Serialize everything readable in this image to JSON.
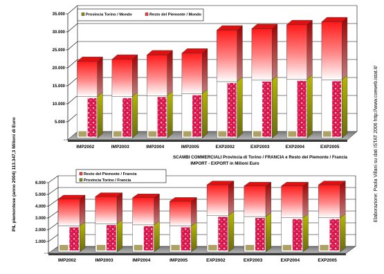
{
  "side_label_left": "PIL piemontese (anno 2004) 113.347,3 Milioni di  Euro",
  "side_label_right": "Elaborazione:  Paola Villani  su dati ISTAT 2006 http://www.coeweb.istat.it/",
  "middle_title_1": "SCAMBI COMMERCIALI Provincia di Torino / FRANCIA e Resto del Piemonte / Francia",
  "middle_title_2": "IMPORT - EXPORT  in Milioni Euro",
  "colors": {
    "red_top": "#ff1a1a",
    "white": "#ffffff",
    "olive": "#8e8e10",
    "pink": "#d8184c",
    "floor": "#a0a0a0"
  },
  "chart_data": [
    {
      "type": "bar",
      "stacked": true,
      "categories": [
        "IMP2002",
        "IMP2003",
        "IMP2004",
        "IMP2005",
        "EXP2002",
        "EXP2003",
        "EXP2004",
        "EXP2005"
      ],
      "series": [
        {
          "name": "Provincia Torino / Mondo",
          "values": [
            11500,
            11500,
            11800,
            12300,
            15700,
            16100,
            16300,
            16200
          ]
        },
        {
          "name": "Resto del Piemonte / Mondo",
          "values": [
            9800,
            10400,
            11300,
            11300,
            14300,
            14300,
            15200,
            16100
          ]
        }
      ],
      "ylim": [
        0,
        35000
      ],
      "yticks": [
        "-",
        "5.000",
        "10.000",
        "15.000",
        "20.000",
        "25.000",
        "30.000",
        "35.000"
      ],
      "grid": true,
      "legend_position": "top-left"
    },
    {
      "type": "bar",
      "stacked": true,
      "categories": [
        "IMP2002",
        "IMP2003",
        "IMP2004",
        "IMP2005",
        "EXP2002",
        "EXP2003",
        "EXP2004",
        "EXP2005"
      ],
      "series": [
        {
          "name": "Provincia Torino / Francia",
          "values": [
            2200,
            2400,
            2300,
            2200,
            3100,
            3000,
            2900,
            2900
          ]
        },
        {
          "name": "Resto del Piemonte / Francia",
          "values": [
            2300,
            2300,
            2300,
            2100,
            2600,
            2600,
            2700,
            2800
          ]
        }
      ],
      "legend_order": [
        "Resto del Piemonte / Francia",
        "Provincia Torino / Francia"
      ],
      "ylim": [
        0,
        6000
      ],
      "yticks": [
        "-",
        "1.000",
        "2.000",
        "3.000",
        "4.000",
        "5.000",
        "6.000"
      ],
      "grid": true,
      "legend_position": "top-left"
    }
  ]
}
